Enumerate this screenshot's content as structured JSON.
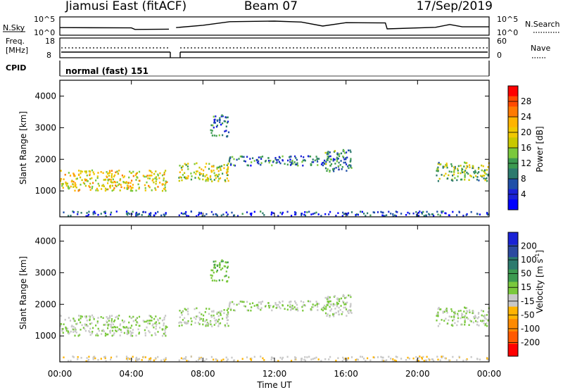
{
  "header": {
    "station": "Jiamusi East (fitACF)",
    "beam": "Beam 07",
    "date": "17/Sep/2019"
  },
  "top_panels": {
    "nsky_label": "N.Sky",
    "nsky_ticks": [
      "10^5",
      "10^0"
    ],
    "nsearch_label": "N.Search",
    "nsearch_ticks": [
      "10^5",
      "10^0"
    ],
    "freq_label_1": "Freq.",
    "freq_label_2": "[MHz]",
    "freq_ticks": [
      "18",
      "8"
    ],
    "nave_label": "Nave",
    "nave_ticks": [
      "60",
      "0"
    ],
    "cpid_label": "CPID",
    "cpid_value": "normal (fast) 151"
  },
  "axes": {
    "ylabel": "Slant Range [km]",
    "yticks": [
      "4000",
      "3000",
      "2000",
      "1000"
    ],
    "xticks": [
      "00:00",
      "04:00",
      "08:00",
      "12:00",
      "16:00",
      "20:00",
      "00:00"
    ],
    "xlabel": "Time UT"
  },
  "colorbars": {
    "power_label": "Power [dB]",
    "power_ticks": [
      "28",
      "24",
      "20",
      "16",
      "12",
      "8",
      "4"
    ],
    "power_colors": [
      "#ff0000",
      "#ff4a00",
      "#ff7a00",
      "#ffb400",
      "#f0c800",
      "#c8c800",
      "#7ac83c",
      "#3c9a50",
      "#2c7a6e",
      "#1f4fa8",
      "#1a22d6",
      "#0000ff"
    ],
    "velocity_label": "Velocity [m s",
    "velocity_sup": "-1",
    "velocity_label_end": "]",
    "velocity_ticks": [
      "200",
      "100",
      "50",
      "15",
      "-15",
      "-50",
      "-100",
      "-200"
    ],
    "velocity_colors": [
      "#1a22d6",
      "#2c4aa0",
      "#2c7a6e",
      "#3c9a50",
      "#7ac83c",
      "#c8c8c8",
      "#ffb400",
      "#ff8a00",
      "#ff5a00",
      "#ff0000"
    ]
  },
  "chart_data": {
    "type": "heatmap",
    "title": "Jiamusi East (fitACF) Beam 07 17/Sep/2019",
    "xlabel": "Time UT",
    "ylabel": "Slant Range [km]",
    "x_range_hours": [
      0,
      24
    ],
    "y_range_km": [
      180,
      4500
    ],
    "data_gap_hours": [
      6.1,
      6.5
    ],
    "echo_regions": [
      {
        "start_h": 0.0,
        "end_h": 6.0,
        "range_km": [
          1000,
          1650
        ],
        "power_db": 20,
        "velocity_ms": 0
      },
      {
        "start_h": 6.6,
        "end_h": 9.4,
        "range_km": [
          1300,
          1900
        ],
        "power_db": 18,
        "velocity_ms": 0
      },
      {
        "start_h": 8.4,
        "end_h": 9.4,
        "range_km": [
          2700,
          3400
        ],
        "power_db": 8,
        "velocity_ms": 40
      },
      {
        "start_h": 9.4,
        "end_h": 16.3,
        "range_km": [
          1800,
          2100
        ],
        "power_db": 8,
        "velocity_ms": 0
      },
      {
        "start_h": 14.8,
        "end_h": 16.3,
        "range_km": [
          1600,
          2300
        ],
        "power_db": 10,
        "velocity_ms": -10
      },
      {
        "start_h": 21.0,
        "end_h": 24.0,
        "range_km": [
          1300,
          1900
        ],
        "power_db": 14,
        "velocity_ms": 0
      },
      {
        "start_h": 0.0,
        "end_h": 24.0,
        "range_km": [
          200,
          350
        ],
        "power_db": 4,
        "velocity_ms": -40
      }
    ],
    "nsky_trace": [
      {
        "h": 0.0,
        "v": 0.4
      },
      {
        "h": 4.0,
        "v": 0.38
      },
      {
        "h": 4.2,
        "v": 0.28
      },
      {
        "h": 6.1,
        "v": 0.3
      },
      {
        "h": 6.5,
        "v": 0.4
      },
      {
        "h": 8.0,
        "v": 0.55
      },
      {
        "h": 9.5,
        "v": 0.78
      },
      {
        "h": 12.0,
        "v": 0.82
      },
      {
        "h": 13.5,
        "v": 0.76
      },
      {
        "h": 14.7,
        "v": 0.5
      },
      {
        "h": 16.0,
        "v": 0.72
      },
      {
        "h": 18.2,
        "v": 0.7
      },
      {
        "h": 18.3,
        "v": 0.32
      },
      {
        "h": 21.0,
        "v": 0.42
      },
      {
        "h": 21.8,
        "v": 0.6
      },
      {
        "h": 22.5,
        "v": 0.45
      },
      {
        "h": 24.0,
        "v": 0.45
      }
    ],
    "power_scale_db": [
      0,
      32
    ],
    "velocity_scale_ms": [
      -250,
      250
    ]
  }
}
